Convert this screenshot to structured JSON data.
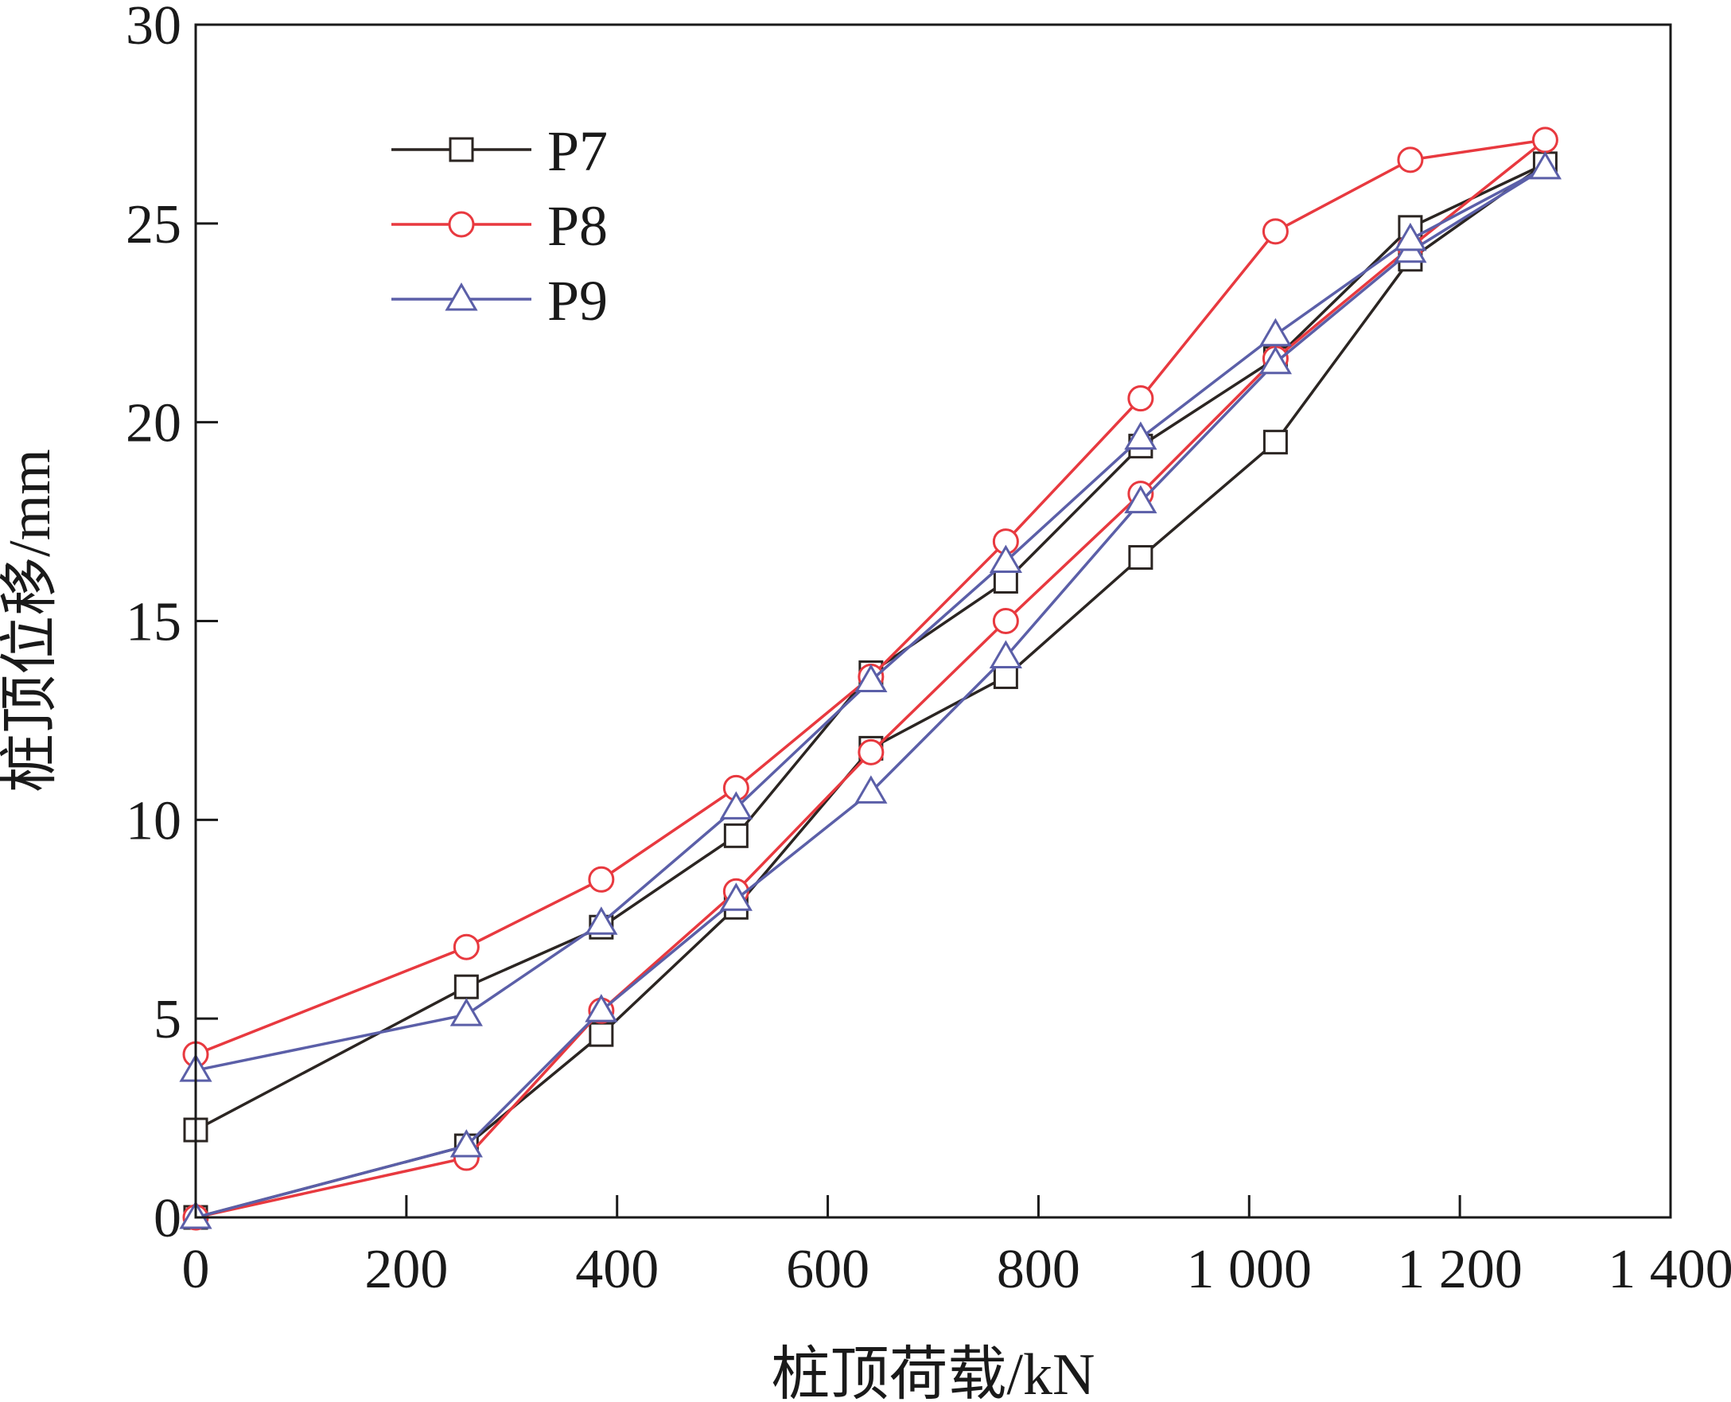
{
  "chart_data": {
    "type": "line",
    "title": "",
    "xlabel": "桩顶荷载/kN",
    "ylabel": "桩顶位移/mm",
    "xlim": [
      0,
      1400
    ],
    "ylim": [
      0,
      30
    ],
    "xticks": [
      0,
      200,
      400,
      600,
      800,
      1000,
      1200,
      1400
    ],
    "xtick_labels": [
      "0",
      "200",
      "400",
      "600",
      "800",
      "1 000",
      "1 200",
      "1 400"
    ],
    "yticks": [
      0,
      5,
      10,
      15,
      20,
      25,
      30
    ],
    "ytick_labels": [
      "0",
      "5",
      "10",
      "15",
      "20",
      "25",
      "30"
    ],
    "grid": false,
    "legend_position": "top-left",
    "series": [
      {
        "name": "P7",
        "color": "#2b2522",
        "marker": "square",
        "x": [
          0,
          257,
          385,
          513,
          641,
          769,
          897,
          1025,
          1153,
          1281,
          1153,
          1025,
          897,
          769,
          641,
          513,
          385,
          257,
          0
        ],
        "y": [
          0,
          1.8,
          4.6,
          7.8,
          11.8,
          13.6,
          16.6,
          19.5,
          24.1,
          26.5,
          24.9,
          21.6,
          19.4,
          16.0,
          13.7,
          9.6,
          7.3,
          5.8,
          2.2
        ]
      },
      {
        "name": "P8",
        "color": "#e8393f",
        "marker": "circle",
        "x": [
          0,
          257,
          385,
          513,
          641,
          769,
          897,
          1025,
          1153,
          1281,
          1153,
          1025,
          897,
          769,
          641,
          513,
          385,
          257,
          0
        ],
        "y": [
          0,
          1.5,
          5.2,
          8.2,
          11.7,
          15.0,
          18.2,
          21.6,
          24.4,
          27.1,
          26.6,
          24.8,
          20.6,
          17.0,
          13.6,
          10.8,
          8.5,
          6.8,
          4.1
        ]
      },
      {
        "name": "P9",
        "color": "#5b5fa8",
        "marker": "triangle",
        "x": [
          0,
          257,
          385,
          513,
          641,
          769,
          897,
          1025,
          1153,
          1281,
          1153,
          1025,
          897,
          769,
          641,
          513,
          385,
          257,
          0
        ],
        "y": [
          0,
          1.8,
          5.2,
          8.0,
          10.7,
          14.1,
          18.0,
          21.5,
          24.3,
          26.4,
          24.6,
          22.2,
          19.6,
          16.5,
          13.5,
          10.3,
          7.4,
          5.1,
          3.7
        ]
      }
    ]
  }
}
